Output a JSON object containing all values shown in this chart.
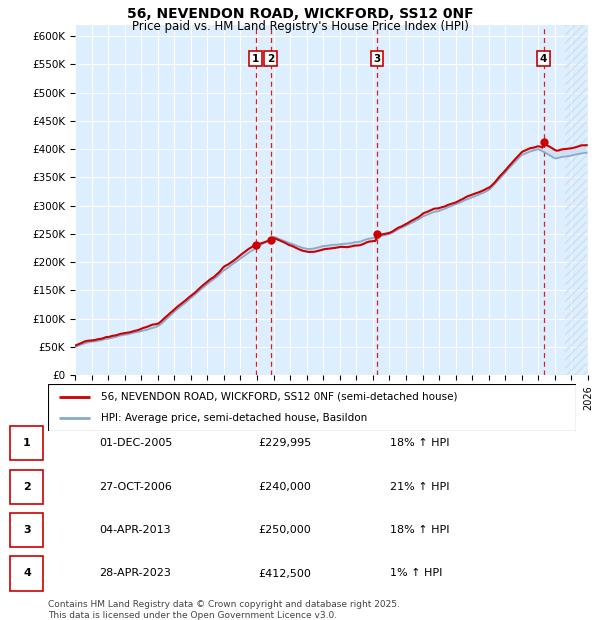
{
  "title": "56, NEVENDON ROAD, WICKFORD, SS12 0NF",
  "subtitle": "Price paid vs. HM Land Registry's House Price Index (HPI)",
  "background_color": "#ddeeff",
  "red_line_color": "#cc0000",
  "blue_line_color": "#88aacc",
  "grid_color": "#ffffff",
  "ylim": [
    0,
    620000
  ],
  "yticks": [
    0,
    50000,
    100000,
    150000,
    200000,
    250000,
    300000,
    350000,
    400000,
    450000,
    500000,
    550000,
    600000
  ],
  "ytick_labels": [
    "£0",
    "£50K",
    "£100K",
    "£150K",
    "£200K",
    "£250K",
    "£300K",
    "£350K",
    "£400K",
    "£450K",
    "£500K",
    "£550K",
    "£600K"
  ],
  "sale_dates_num": [
    2005.92,
    2006.82,
    2013.25,
    2023.32
  ],
  "sale_prices": [
    229995,
    240000,
    250000,
    412500
  ],
  "sale_labels": [
    "1",
    "2",
    "3",
    "4"
  ],
  "vline_color": "#cc0000",
  "marker_color": "#cc0000",
  "table_rows": [
    [
      "1",
      "01-DEC-2005",
      "£229,995",
      "18% ↑ HPI"
    ],
    [
      "2",
      "27-OCT-2006",
      "£240,000",
      "21% ↑ HPI"
    ],
    [
      "3",
      "04-APR-2013",
      "£250,000",
      "18% ↑ HPI"
    ],
    [
      "4",
      "28-APR-2023",
      "£412,500",
      "1% ↑ HPI"
    ]
  ],
  "legend_entries": [
    "56, NEVENDON ROAD, WICKFORD, SS12 0NF (semi-detached house)",
    "HPI: Average price, semi-detached house, Basildon"
  ],
  "footer_text": "Contains HM Land Registry data © Crown copyright and database right 2025.\nThis data is licensed under the Open Government Licence v3.0.",
  "xmin": 1995,
  "xmax": 2026
}
